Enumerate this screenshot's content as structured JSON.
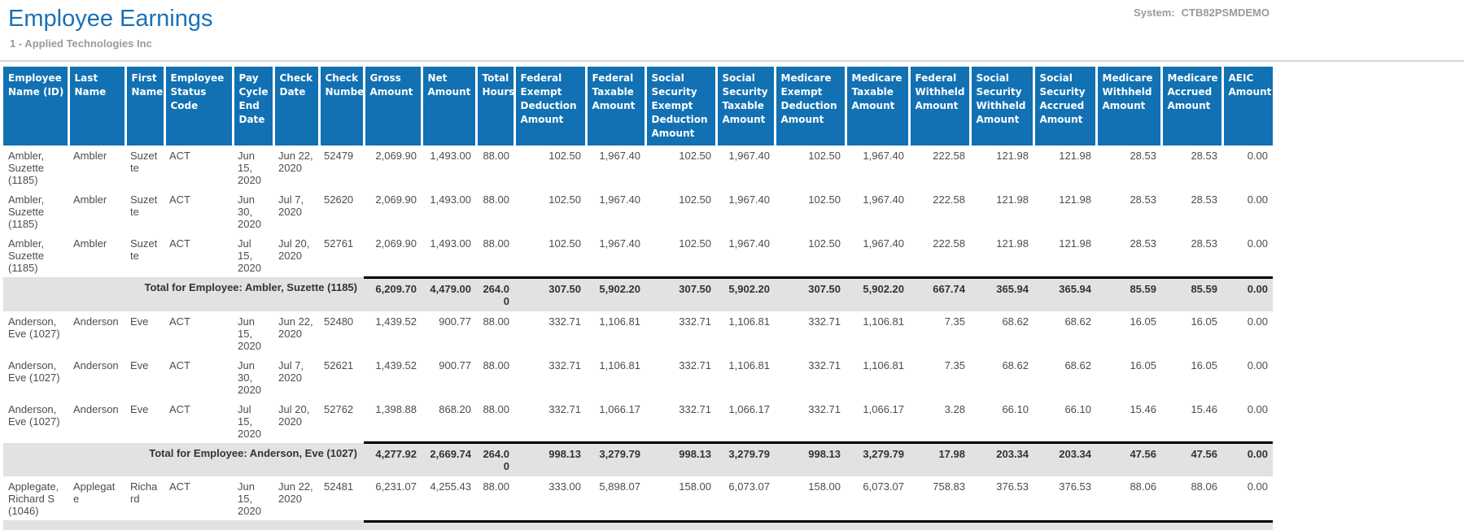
{
  "page": {
    "title": "Employee Earnings",
    "subtitle": "1 - Applied Technologies Inc",
    "system_label": "System:",
    "system_value": "CTB82PSMDEMO"
  },
  "colors": {
    "title-blue": "#1a70b8",
    "header-blue": "#1171b3",
    "total-gray": "#e2e2e2",
    "muted-gray": "#9a9a9a"
  },
  "table": {
    "columns": [
      "Employee Name (ID)",
      "Last Name",
      "First Name",
      "Employee Status Code",
      "Pay Cycle End Date",
      "Check Date",
      "Check Number",
      "Gross Amount",
      "Net Amount",
      "Total Hours",
      "Federal Exempt Deduction Amount",
      "Federal Taxable Amount",
      "Social Security Exempt Deduction Amount",
      "Social Security Taxable Amount",
      "Medicare Exempt Deduction Amount",
      "Medicare Taxable Amount",
      "Federal Withheld Amount",
      "Social Security Withheld Amount",
      "Social Security Accrued Amount",
      "Medicare Withheld Amount",
      "Medicare Accrued Amount",
      "AEIC Amount"
    ],
    "groups": [
      {
        "rows": [
          [
            "Ambler, Suzette (1185)",
            "Ambler",
            "Suzette",
            "ACT",
            "Jun 15, 2020",
            "Jun 22, 2020",
            "52479",
            "2,069.90",
            "1,493.00",
            "88.00",
            "102.50",
            "1,967.40",
            "102.50",
            "1,967.40",
            "102.50",
            "1,967.40",
            "222.58",
            "121.98",
            "121.98",
            "28.53",
            "28.53",
            "0.00"
          ],
          [
            "Ambler, Suzette (1185)",
            "Ambler",
            "Suzette",
            "ACT",
            "Jun 30, 2020",
            "Jul 7, 2020",
            "52620",
            "2,069.90",
            "1,493.00",
            "88.00",
            "102.50",
            "1,967.40",
            "102.50",
            "1,967.40",
            "102.50",
            "1,967.40",
            "222.58",
            "121.98",
            "121.98",
            "28.53",
            "28.53",
            "0.00"
          ],
          [
            "Ambler, Suzette (1185)",
            "Ambler",
            "Suzette",
            "ACT",
            "Jul 15, 2020",
            "Jul 20, 2020",
            "52761",
            "2,069.90",
            "1,493.00",
            "88.00",
            "102.50",
            "1,967.40",
            "102.50",
            "1,967.40",
            "102.50",
            "1,967.40",
            "222.58",
            "121.98",
            "121.98",
            "28.53",
            "28.53",
            "0.00"
          ]
        ],
        "total": {
          "label": "Total for Employee: Ambler, Suzette (1185)",
          "values": [
            "6,209.70",
            "4,479.00",
            "264.00",
            "307.50",
            "5,902.20",
            "307.50",
            "5,902.20",
            "307.50",
            "5,902.20",
            "667.74",
            "365.94",
            "365.94",
            "85.59",
            "85.59",
            "0.00"
          ]
        }
      },
      {
        "rows": [
          [
            "Anderson, Eve (1027)",
            "Anderson",
            "Eve",
            "ACT",
            "Jun 15, 2020",
            "Jun 22, 2020",
            "52480",
            "1,439.52",
            "900.77",
            "88.00",
            "332.71",
            "1,106.81",
            "332.71",
            "1,106.81",
            "332.71",
            "1,106.81",
            "7.35",
            "68.62",
            "68.62",
            "16.05",
            "16.05",
            "0.00"
          ],
          [
            "Anderson, Eve (1027)",
            "Anderson",
            "Eve",
            "ACT",
            "Jun 30, 2020",
            "Jul 7, 2020",
            "52621",
            "1,439.52",
            "900.77",
            "88.00",
            "332.71",
            "1,106.81",
            "332.71",
            "1,106.81",
            "332.71",
            "1,106.81",
            "7.35",
            "68.62",
            "68.62",
            "16.05",
            "16.05",
            "0.00"
          ],
          [
            "Anderson, Eve (1027)",
            "Anderson",
            "Eve",
            "ACT",
            "Jul 15, 2020",
            "Jul 20, 2020",
            "52762",
            "1,398.88",
            "868.20",
            "88.00",
            "332.71",
            "1,066.17",
            "332.71",
            "1,066.17",
            "332.71",
            "1,066.17",
            "3.28",
            "66.10",
            "66.10",
            "15.46",
            "15.46",
            "0.00"
          ]
        ],
        "total": {
          "label": "Total for Employee: Anderson, Eve (1027)",
          "values": [
            "4,277.92",
            "2,669.74",
            "264.00",
            "998.13",
            "3,279.79",
            "998.13",
            "3,279.79",
            "998.13",
            "3,279.79",
            "17.98",
            "203.34",
            "203.34",
            "47.56",
            "47.56",
            "0.00"
          ]
        }
      },
      {
        "rows": [
          [
            "Applegate, Richard S (1046)",
            "Applegate",
            "Richard",
            "ACT",
            "Jun 15, 2020",
            "Jun 22, 2020",
            "52481",
            "6,231.07",
            "4,255.43",
            "88.00",
            "333.00",
            "5,898.07",
            "158.00",
            "6,073.07",
            "158.00",
            "6,073.07",
            "758.83",
            "376.53",
            "376.53",
            "88.06",
            "88.06",
            "0.00"
          ]
        ],
        "total": null
      }
    ],
    "truncated_bottom_band": true
  }
}
